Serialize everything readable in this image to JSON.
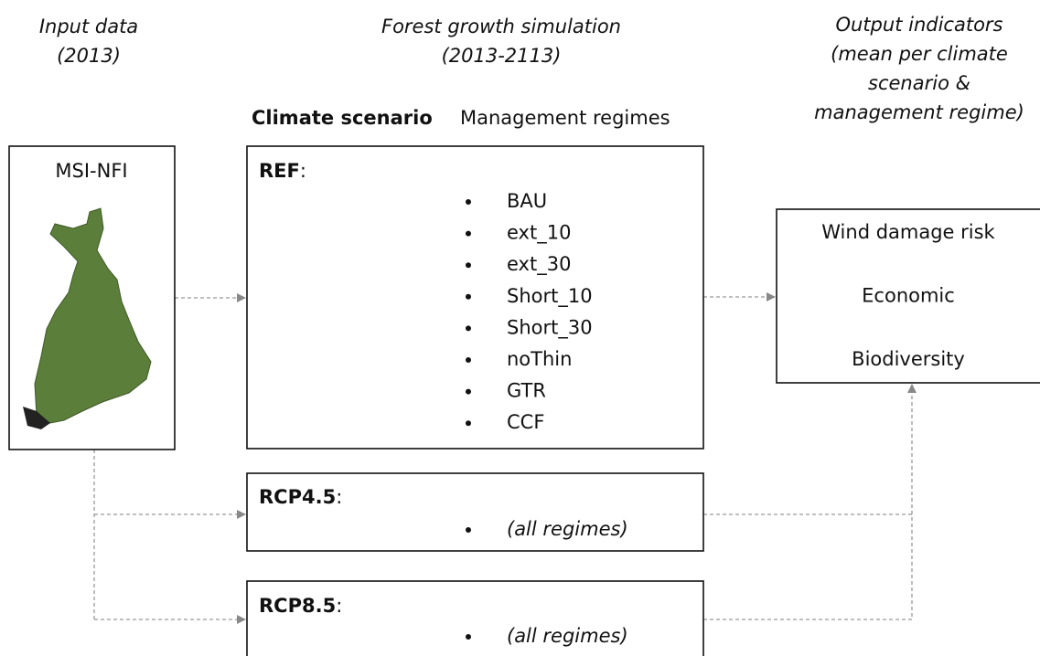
{
  "headers": {
    "input": [
      "Input data",
      "(2013)"
    ],
    "simulation": [
      "Forest growth simulation",
      "(2013-2113)"
    ],
    "output": [
      "Output indicators",
      "(mean per climate",
      "scenario &",
      "management regime)"
    ]
  },
  "climate_header": "Climate scenario",
  "management_header": "Management regimes",
  "input_box": {
    "label": "MSI-NFI"
  },
  "scenarios": [
    {
      "name": "REF",
      "suffix": ":",
      "regimes": [
        "BAU",
        "ext_10",
        "ext_30",
        "Short_10",
        "Short_30",
        "noThin",
        "GTR",
        "CCF"
      ]
    },
    {
      "name": "RCP4.5",
      "suffix": ":",
      "regimes": [
        "(all regimes)"
      ]
    },
    {
      "name": "RCP8.5",
      "suffix": ":",
      "regimes": [
        "(all regimes)"
      ]
    }
  ],
  "output_box": {
    "indicators": [
      "Wind damage risk",
      "Economic",
      "Biodiversity"
    ]
  }
}
